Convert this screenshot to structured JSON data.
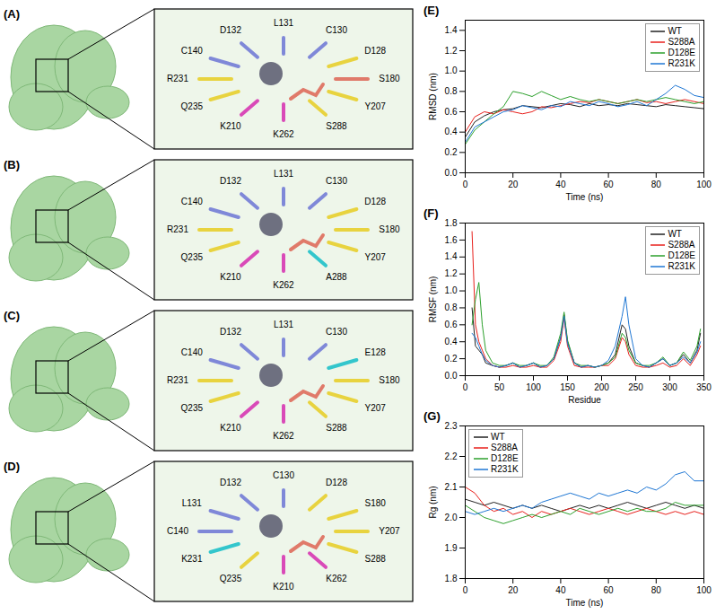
{
  "structures": [
    {
      "panel": "(A)",
      "residues": [
        {
          "label": "L131",
          "color": "#7f88d8"
        },
        {
          "label": "C130",
          "color": "#7f88d8"
        },
        {
          "label": "D128",
          "color": "#e8d33f"
        },
        {
          "label": "S180",
          "color": "#e07a6a"
        },
        {
          "label": "Y207",
          "color": "#e8d33f"
        },
        {
          "label": "S288",
          "color": "#e8d33f"
        },
        {
          "label": "K262",
          "color": "#d94ab8"
        },
        {
          "label": "K210",
          "color": "#d94ab8"
        },
        {
          "label": "Q235",
          "color": "#e8d33f"
        },
        {
          "label": "R231",
          "color": "#e8d33f"
        },
        {
          "label": "C140",
          "color": "#7f88d8"
        },
        {
          "label": "D132",
          "color": "#7f88d8"
        }
      ]
    },
    {
      "panel": "(B)",
      "residues": [
        {
          "label": "L131",
          "color": "#7f88d8"
        },
        {
          "label": "C130",
          "color": "#7f88d8"
        },
        {
          "label": "D128",
          "color": "#e8d33f"
        },
        {
          "label": "S180",
          "color": "#e8d33f"
        },
        {
          "label": "Y207",
          "color": "#e8d33f"
        },
        {
          "label": "A288",
          "color": "#33c6cc"
        },
        {
          "label": "K262",
          "color": "#d94ab8"
        },
        {
          "label": "K210",
          "color": "#d94ab8"
        },
        {
          "label": "Q235",
          "color": "#e8d33f"
        },
        {
          "label": "R231",
          "color": "#e8d33f"
        },
        {
          "label": "C140",
          "color": "#7f88d8"
        },
        {
          "label": "D132",
          "color": "#7f88d8"
        }
      ]
    },
    {
      "panel": "(C)",
      "residues": [
        {
          "label": "L131",
          "color": "#7f88d8"
        },
        {
          "label": "C130",
          "color": "#7f88d8"
        },
        {
          "label": "E128",
          "color": "#33c6cc"
        },
        {
          "label": "S180",
          "color": "#e8d33f"
        },
        {
          "label": "Y207",
          "color": "#e8d33f"
        },
        {
          "label": "S288",
          "color": "#e8d33f"
        },
        {
          "label": "K262",
          "color": "#d94ab8"
        },
        {
          "label": "K210",
          "color": "#d94ab8"
        },
        {
          "label": "Q235",
          "color": "#e8d33f"
        },
        {
          "label": "R231",
          "color": "#e8d33f"
        },
        {
          "label": "C140",
          "color": "#7f88d8"
        },
        {
          "label": "D132",
          "color": "#7f88d8"
        }
      ]
    },
    {
      "panel": "(D)",
      "residues": [
        {
          "label": "C130",
          "color": "#7f88d8"
        },
        {
          "label": "D128",
          "color": "#e8d33f"
        },
        {
          "label": "S180",
          "color": "#e8d33f"
        },
        {
          "label": "Y207",
          "color": "#e8d33f"
        },
        {
          "label": "S288",
          "color": "#e8d33f"
        },
        {
          "label": "K262",
          "color": "#d94ab8"
        },
        {
          "label": "K210",
          "color": "#d94ab8"
        },
        {
          "label": "Q235",
          "color": "#e8d33f"
        },
        {
          "label": "K231",
          "color": "#33c6cc"
        },
        {
          "label": "C140",
          "color": "#7f88d8"
        },
        {
          "label": "L131",
          "color": "#7f88d8"
        },
        {
          "label": "D132",
          "color": "#7f88d8"
        }
      ]
    }
  ],
  "chart_data": [
    {
      "panel": "(E)",
      "type": "line",
      "x_label": "Time (ns)",
      "y_label": "RMSD (nm)",
      "legend": "top-right",
      "x": [
        0,
        4,
        8,
        12,
        16,
        20,
        24,
        28,
        32,
        36,
        40,
        44,
        48,
        52,
        56,
        60,
        64,
        68,
        72,
        76,
        80,
        84,
        88,
        92,
        96,
        100
      ],
      "xlim": [
        0,
        100
      ],
      "xticks": [
        0,
        20,
        40,
        60,
        80,
        100
      ],
      "ylim": [
        0,
        1.5
      ],
      "yticks": [
        {
          "value": 0,
          "label": "0.0"
        },
        0.2,
        0.4,
        0.6,
        0.8,
        {
          "value": 1,
          "label": "1.0"
        },
        1.2,
        1.4
      ],
      "series": [
        {
          "name": "WT",
          "color": "#222222",
          "values": [
            0.35,
            0.5,
            0.56,
            0.6,
            0.62,
            0.63,
            0.66,
            0.65,
            0.64,
            0.66,
            0.68,
            0.67,
            0.65,
            0.68,
            0.66,
            0.67,
            0.66,
            0.68,
            0.67,
            0.66,
            0.65,
            0.67,
            0.66,
            0.65,
            0.64,
            0.63
          ]
        },
        {
          "name": "S288A",
          "color": "#e8201c",
          "values": [
            0.4,
            0.55,
            0.6,
            0.58,
            0.62,
            0.6,
            0.58,
            0.6,
            0.65,
            0.64,
            0.66,
            0.68,
            0.7,
            0.69,
            0.72,
            0.7,
            0.68,
            0.7,
            0.72,
            0.69,
            0.7,
            0.68,
            0.7,
            0.72,
            0.7,
            0.68
          ]
        },
        {
          "name": "D128E",
          "color": "#2ca02c",
          "values": [
            0.28,
            0.42,
            0.5,
            0.58,
            0.65,
            0.8,
            0.78,
            0.75,
            0.8,
            0.76,
            0.72,
            0.75,
            0.72,
            0.7,
            0.72,
            0.7,
            0.68,
            0.7,
            0.72,
            0.7,
            0.72,
            0.74,
            0.72,
            0.7,
            0.68,
            0.7
          ]
        },
        {
          "name": "R231K",
          "color": "#1f77d4",
          "values": [
            0.3,
            0.45,
            0.5,
            0.55,
            0.6,
            0.62,
            0.66,
            0.64,
            0.62,
            0.66,
            0.65,
            0.7,
            0.68,
            0.66,
            0.7,
            0.68,
            0.65,
            0.67,
            0.7,
            0.66,
            0.72,
            0.78,
            0.86,
            0.82,
            0.76,
            0.74
          ]
        }
      ]
    },
    {
      "panel": "(F)",
      "type": "line",
      "x_label": "Residue",
      "y_label": "RMSF (nm)",
      "legend": "top-right",
      "x": [
        10,
        15,
        20,
        25,
        30,
        40,
        50,
        60,
        70,
        80,
        90,
        100,
        110,
        120,
        130,
        140,
        145,
        150,
        160,
        170,
        180,
        190,
        200,
        210,
        220,
        230,
        235,
        240,
        250,
        260,
        270,
        280,
        290,
        300,
        310,
        320,
        330,
        340,
        345
      ],
      "xlim": [
        0,
        350
      ],
      "xticks": [
        0,
        50,
        100,
        150,
        200,
        250,
        300,
        350
      ],
      "ylim": [
        0,
        1.8
      ],
      "yticks": [
        {
          "value": 0,
          "label": "0.0"
        },
        0.2,
        0.4,
        0.6,
        0.8,
        {
          "value": 1,
          "label": "1.0"
        },
        1.2,
        1.4,
        1.6,
        1.8
      ],
      "series": [
        {
          "name": "WT",
          "color": "#222222",
          "values": [
            0.8,
            0.35,
            0.3,
            0.25,
            0.15,
            0.12,
            0.1,
            0.12,
            0.15,
            0.1,
            0.12,
            0.15,
            0.1,
            0.12,
            0.2,
            0.45,
            0.72,
            0.4,
            0.15,
            0.1,
            0.12,
            0.1,
            0.12,
            0.15,
            0.25,
            0.6,
            0.55,
            0.35,
            0.15,
            0.12,
            0.1,
            0.15,
            0.2,
            0.12,
            0.15,
            0.25,
            0.15,
            0.3,
            0.5
          ]
        },
        {
          "name": "S288A",
          "color": "#e8201c",
          "values": [
            1.7,
            0.6,
            0.4,
            0.3,
            0.2,
            0.12,
            0.1,
            0.1,
            0.12,
            0.1,
            0.1,
            0.12,
            0.1,
            0.1,
            0.18,
            0.4,
            0.68,
            0.35,
            0.12,
            0.1,
            0.1,
            0.1,
            0.12,
            0.12,
            0.2,
            0.45,
            0.4,
            0.25,
            0.12,
            0.1,
            0.1,
            0.12,
            0.15,
            0.1,
            0.12,
            0.2,
            0.12,
            0.25,
            0.35
          ]
        },
        {
          "name": "D128E",
          "color": "#2ca02c",
          "values": [
            0.6,
            0.9,
            1.1,
            0.6,
            0.3,
            0.15,
            0.12,
            0.12,
            0.15,
            0.12,
            0.12,
            0.15,
            0.12,
            0.12,
            0.22,
            0.5,
            0.75,
            0.42,
            0.15,
            0.12,
            0.12,
            0.1,
            0.12,
            0.15,
            0.22,
            0.5,
            0.45,
            0.3,
            0.15,
            0.12,
            0.12,
            0.15,
            0.22,
            0.12,
            0.15,
            0.28,
            0.18,
            0.35,
            0.55
          ]
        },
        {
          "name": "R231K",
          "color": "#1f77d4",
          "values": [
            0.5,
            0.45,
            0.35,
            0.25,
            0.18,
            0.12,
            0.1,
            0.12,
            0.15,
            0.1,
            0.12,
            0.15,
            0.1,
            0.12,
            0.2,
            0.45,
            0.7,
            0.38,
            0.15,
            0.1,
            0.12,
            0.1,
            0.12,
            0.18,
            0.35,
            0.7,
            0.93,
            0.6,
            0.2,
            0.12,
            0.1,
            0.15,
            0.2,
            0.12,
            0.15,
            0.22,
            0.15,
            0.28,
            0.4
          ]
        }
      ]
    },
    {
      "panel": "(G)",
      "type": "line",
      "x_label": "Time (ns)",
      "y_label": "Rg (nm)",
      "legend": "top-left",
      "x": [
        0,
        4,
        8,
        12,
        16,
        20,
        24,
        28,
        32,
        36,
        40,
        44,
        48,
        52,
        56,
        60,
        64,
        68,
        72,
        76,
        80,
        84,
        88,
        92,
        96,
        100
      ],
      "xlim": [
        0,
        100
      ],
      "xticks": [
        0,
        20,
        40,
        60,
        80,
        100
      ],
      "ylim": [
        1.8,
        2.3
      ],
      "yticks": [
        1.8,
        1.9,
        {
          "value": 2,
          "label": "2.0"
        },
        2.1,
        2.2,
        2.3
      ],
      "series": [
        {
          "name": "WT",
          "color": "#222222",
          "values": [
            2.06,
            2.05,
            2.04,
            2.05,
            2.04,
            2.03,
            2.04,
            2.03,
            2.04,
            2.03,
            2.02,
            2.03,
            2.04,
            2.03,
            2.04,
            2.03,
            2.04,
            2.05,
            2.04,
            2.03,
            2.04,
            2.05,
            2.04,
            2.03,
            2.04,
            2.03
          ]
        },
        {
          "name": "S288A",
          "color": "#e8201c",
          "values": [
            2.1,
            2.08,
            2.04,
            2.02,
            2.03,
            2.01,
            2.02,
            2.0,
            2.02,
            2.01,
            2.02,
            2.03,
            2.02,
            2.01,
            2.02,
            2.03,
            2.02,
            2.01,
            2.02,
            2.03,
            2.02,
            2.01,
            2.02,
            2.01,
            2.02,
            2.01
          ]
        },
        {
          "name": "D128E",
          "color": "#2ca02c",
          "values": [
            2.04,
            2.02,
            2.0,
            1.99,
            1.98,
            1.99,
            2.0,
            2.01,
            2.0,
            2.01,
            2.02,
            2.01,
            2.03,
            2.02,
            2.01,
            2.02,
            2.03,
            2.02,
            2.03,
            2.02,
            2.02,
            2.03,
            2.05,
            2.04,
            2.04,
            2.04
          ]
        },
        {
          "name": "R231K",
          "color": "#1f77d4",
          "values": [
            2.02,
            2.01,
            2.02,
            2.03,
            2.02,
            2.03,
            2.04,
            2.03,
            2.05,
            2.06,
            2.07,
            2.08,
            2.07,
            2.06,
            2.08,
            2.07,
            2.08,
            2.09,
            2.08,
            2.1,
            2.09,
            2.11,
            2.14,
            2.15,
            2.12,
            2.12
          ]
        }
      ]
    }
  ]
}
